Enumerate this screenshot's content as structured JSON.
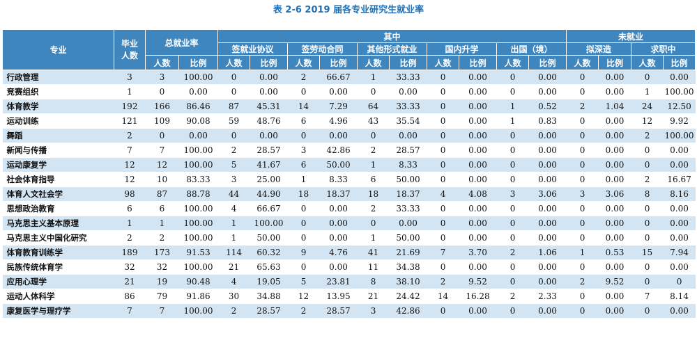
{
  "title": "表 2-6 2019 届各专业研究生就业率",
  "headers": {
    "major": "专业",
    "graduates": "毕业人数",
    "overall_rate": "总就业率",
    "of_which": "其中",
    "unemployed": "未就业",
    "contract": "签就业协议",
    "labor": "签劳动合同",
    "other": "其他形式就业",
    "domestic_study": "国内升学",
    "abroad": "出国（境）",
    "plan_study": "拟深造",
    "job_seeking": "求职中",
    "count": "人数",
    "ratio": "比例"
  },
  "rows": [
    [
      "行政管理",
      "3",
      "3",
      "100.00",
      "0",
      "0.00",
      "2",
      "66.67",
      "1",
      "33.33",
      "0",
      "0.00",
      "0",
      "0.00",
      "0",
      "0.00",
      "0",
      "0.00"
    ],
    [
      "竞赛组织",
      "1",
      "0",
      "0.00",
      "0",
      "0.00",
      "0",
      "0.00",
      "0",
      "0.00",
      "0",
      "0.00",
      "0",
      "0.00",
      "0",
      "0.00",
      "1",
      "100.00"
    ],
    [
      "体育教学",
      "192",
      "166",
      "86.46",
      "87",
      "45.31",
      "14",
      "7.29",
      "64",
      "33.33",
      "0",
      "0.00",
      "1",
      "0.52",
      "2",
      "1.04",
      "24",
      "12.50"
    ],
    [
      "运动训练",
      "121",
      "109",
      "90.08",
      "59",
      "48.76",
      "6",
      "4.96",
      "43",
      "35.54",
      "0",
      "0.00",
      "1",
      "0.83",
      "0",
      "0.00",
      "12",
      "9.92"
    ],
    [
      "舞蹈",
      "2",
      "0",
      "0.00",
      "0",
      "0.00",
      "0",
      "0.00",
      "0",
      "0.00",
      "0",
      "0.00",
      "0",
      "0.00",
      "0",
      "0.00",
      "2",
      "100.00"
    ],
    [
      "新闻与传播",
      "7",
      "7",
      "100.00",
      "2",
      "28.57",
      "3",
      "42.86",
      "2",
      "28.57",
      "0",
      "0.00",
      "0",
      "0.00",
      "0",
      "0.00",
      "0",
      "0.00"
    ],
    [
      "运动康复学",
      "12",
      "12",
      "100.00",
      "5",
      "41.67",
      "6",
      "50.00",
      "1",
      "8.33",
      "0",
      "0.00",
      "0",
      "0.00",
      "0",
      "0.00",
      "0",
      "0.00"
    ],
    [
      "社会体育指导",
      "12",
      "10",
      "83.33",
      "3",
      "25.00",
      "1",
      "8.33",
      "6",
      "50.00",
      "0",
      "0.00",
      "0",
      "0.00",
      "0",
      "0.00",
      "2",
      "16.67"
    ],
    [
      "体育人文社会学",
      "98",
      "87",
      "88.78",
      "44",
      "44.90",
      "18",
      "18.37",
      "18",
      "18.37",
      "4",
      "4.08",
      "3",
      "3.06",
      "3",
      "3.06",
      "8",
      "8.16"
    ],
    [
      "思想政治教育",
      "6",
      "6",
      "100.00",
      "4",
      "66.67",
      "0",
      "0.00",
      "2",
      "33.33",
      "0",
      "0.00",
      "0",
      "0.00",
      "0",
      "0.00",
      "0",
      "0.00"
    ],
    [
      "马克思主义基本原理",
      "1",
      "1",
      "100.00",
      "1",
      "100.00",
      "0",
      "0.00",
      "0",
      "0.00",
      "0",
      "0.00",
      "0",
      "0.00",
      "0",
      "0.00",
      "0",
      "0.00"
    ],
    [
      "马克思主义中国化研究",
      "2",
      "2",
      "100.00",
      "1",
      "50.00",
      "0",
      "0.00",
      "1",
      "50.00",
      "0",
      "0.00",
      "0",
      "0.00",
      "0",
      "0.00",
      "0",
      "0.00"
    ],
    [
      "体育教育训练学",
      "189",
      "173",
      "91.53",
      "114",
      "60.32",
      "9",
      "4.76",
      "41",
      "21.69",
      "7",
      "3.70",
      "2",
      "1.06",
      "1",
      "0.53",
      "15",
      "7.94"
    ],
    [
      "民族传统体育学",
      "32",
      "32",
      "100.00",
      "21",
      "65.63",
      "0",
      "0.00",
      "11",
      "34.38",
      "0",
      "0.00",
      "0",
      "0.00",
      "0",
      "0.00",
      "0",
      "0.00"
    ],
    [
      "应用心理学",
      "21",
      "19",
      "90.48",
      "4",
      "19.05",
      "5",
      "23.81",
      "8",
      "38.10",
      "2",
      "9.52",
      "0",
      "0.00",
      "2",
      "9.52",
      "0",
      "0"
    ],
    [
      "运动人体科学",
      "86",
      "79",
      "91.86",
      "30",
      "34.88",
      "12",
      "13.95",
      "21",
      "24.42",
      "14",
      "16.28",
      "2",
      "2.33",
      "0",
      "0.00",
      "7",
      "8.14"
    ],
    [
      "康复医学与理疗学",
      "7",
      "7",
      "100.00",
      "2",
      "28.57",
      "2",
      "28.57",
      "3",
      "42.86",
      "0",
      "0.00",
      "0",
      "0.00",
      "0",
      "0.00",
      "0",
      "0.00"
    ]
  ]
}
